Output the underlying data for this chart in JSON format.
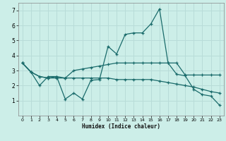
{
  "xlabel": "Humidex (Indice chaleur)",
  "bg_color": "#cceee8",
  "grid_color": "#b8dcd8",
  "line_color": "#1a6b6b",
  "xlim": [
    -0.5,
    23.5
  ],
  "ylim": [
    0,
    7.5
  ],
  "xticks": [
    0,
    1,
    2,
    3,
    4,
    5,
    6,
    7,
    8,
    9,
    10,
    11,
    12,
    13,
    14,
    15,
    16,
    17,
    18,
    19,
    20,
    21,
    22,
    23
  ],
  "yticks": [
    1,
    2,
    3,
    4,
    5,
    6,
    7
  ],
  "line1_x": [
    0,
    1,
    2,
    3,
    4,
    5,
    6,
    7,
    8,
    9,
    10,
    11,
    12,
    13,
    14,
    15,
    16,
    17,
    18,
    19,
    20,
    21,
    22,
    23
  ],
  "line1_y": [
    3.5,
    2.9,
    2.6,
    2.5,
    2.6,
    2.5,
    3.0,
    3.1,
    3.2,
    3.3,
    3.4,
    3.5,
    3.5,
    3.5,
    3.5,
    3.5,
    3.5,
    3.5,
    3.5,
    2.7,
    2.7,
    2.7,
    2.7,
    2.7
  ],
  "line2_x": [
    0,
    1,
    2,
    3,
    4,
    5,
    6,
    7,
    8,
    9,
    10,
    11,
    12,
    13,
    14,
    15,
    16,
    17,
    18,
    19,
    20,
    21,
    22,
    23
  ],
  "line2_y": [
    3.5,
    2.9,
    2.0,
    2.6,
    2.6,
    1.1,
    1.5,
    1.1,
    2.35,
    2.4,
    4.6,
    4.1,
    5.4,
    5.5,
    5.5,
    6.1,
    7.1,
    3.5,
    2.75,
    2.65,
    1.75,
    1.4,
    1.3,
    0.7
  ],
  "line3_x": [
    0,
    1,
    2,
    3,
    4,
    5,
    6,
    7,
    8,
    9,
    10,
    11,
    12,
    13,
    14,
    15,
    16,
    17,
    18,
    19,
    20,
    21,
    22,
    23
  ],
  "line3_y": [
    3.5,
    2.9,
    2.6,
    2.5,
    2.5,
    2.5,
    2.5,
    2.5,
    2.5,
    2.5,
    2.5,
    2.4,
    2.4,
    2.4,
    2.4,
    2.4,
    2.3,
    2.2,
    2.1,
    2.0,
    1.9,
    1.75,
    1.6,
    1.5
  ]
}
